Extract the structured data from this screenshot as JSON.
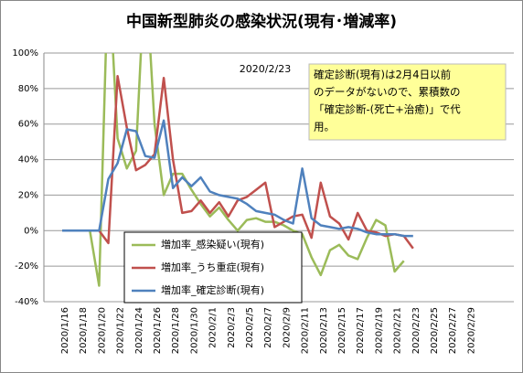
{
  "chart_data": {
    "type": "line",
    "title": "中国新型肺炎の感染状況(現有･増減率)",
    "annotation": "2020/2/23",
    "note": [
      "確定診断(現有)は2月4日以前",
      "のデータがないので、累積数の",
      "「確定診断-(死亡+治癒)」で代",
      "用。"
    ],
    "categories": [
      "2020/1/16",
      null,
      "2020/1/18",
      null,
      "2020/1/20",
      null,
      "2020/1/22",
      null,
      "2020/1/24",
      null,
      "2020/1/26",
      null,
      "2020/1/28",
      null,
      "2020/1/30",
      null,
      "2020/2/1",
      null,
      "2020/2/3",
      null,
      "2020/2/5",
      null,
      "2020/2/7",
      null,
      "2020/2/9",
      null,
      "2020/2/11",
      null,
      "2020/2/13",
      null,
      "2020/2/15",
      null,
      "2020/2/17",
      null,
      "2020/2/19",
      null,
      "2020/2/21",
      null,
      "2020/2/23",
      null,
      "2020/2/25",
      null,
      "2020/2/27",
      null,
      "2020/2/29"
    ],
    "series": [
      {
        "name": "増加率_感染疑い(現有)",
        "color": "#9bbb59",
        "values": [
          0,
          0,
          0,
          0,
          -31,
          150,
          52,
          35,
          45,
          150,
          60,
          20,
          32,
          32,
          23,
          15,
          8,
          13,
          6,
          0,
          6,
          7,
          5,
          5,
          3,
          0,
          -2,
          -15,
          -25,
          -11,
          -8,
          -14,
          -16,
          -4,
          6,
          3,
          -23,
          -17,
          null,
          null,
          null,
          null,
          null,
          null,
          null
        ]
      },
      {
        "name": "増加率_うち重症(現有)",
        "color": "#c0504d",
        "values": [
          null,
          null,
          null,
          null,
          0,
          -7,
          87,
          58,
          34,
          37,
          43,
          86,
          40,
          10,
          11,
          17,
          10,
          16,
          8,
          17,
          19,
          23,
          27,
          2,
          5,
          8,
          9,
          -4,
          27,
          8,
          4,
          -5,
          10,
          0,
          -1,
          -3,
          -2,
          -3,
          -10,
          null,
          null,
          null,
          null,
          null,
          null
        ]
      },
      {
        "name": "増加率_確定診断(現有)",
        "color": "#4f81bd",
        "values": [
          0,
          0,
          0,
          0,
          0,
          29,
          38,
          57,
          56,
          42,
          41,
          62,
          24,
          30,
          25,
          30,
          22,
          20,
          19,
          18,
          15,
          11,
          10,
          9,
          6,
          4,
          35,
          7,
          3,
          2,
          1,
          2,
          1,
          -1,
          -2,
          -2,
          -2,
          -3,
          -3,
          null,
          null,
          null,
          null,
          null,
          null
        ]
      }
    ],
    "ylim": [
      -40,
      100
    ],
    "yticks": [
      {
        "value": -40,
        "label": "-40%"
      },
      {
        "value": -20,
        "label": "-20%"
      },
      {
        "value": 0,
        "label": "0%"
      },
      {
        "value": 20,
        "label": "20%"
      },
      {
        "value": 40,
        "label": "40%"
      },
      {
        "value": 60,
        "label": "60%"
      },
      {
        "value": 80,
        "label": "80%"
      },
      {
        "value": 100,
        "label": "100%"
      }
    ],
    "grid": true
  }
}
